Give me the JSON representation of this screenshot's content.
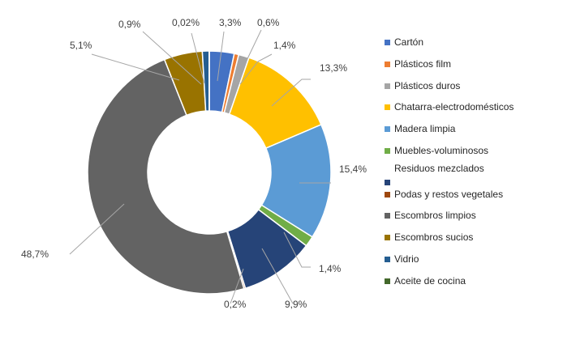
{
  "chart_data": {
    "type": "pie",
    "style": "doughnut",
    "title": "",
    "legend_position": "right",
    "categories": [
      "Cartón",
      "Plásticos film",
      "Plásticos duros",
      "Chatarra-electrodomésticos",
      "Madera limpia",
      "Muebles-voluminosos",
      "Residuos mezclados",
      "Podas y restos vegetales",
      "Escombros limpios",
      "Escombros sucios",
      "Vidrio",
      "Aceite de cocina"
    ],
    "values": [
      3.3,
      0.6,
      1.4,
      13.3,
      15.4,
      1.4,
      9.9,
      0.2,
      48.7,
      5.1,
      0.9,
      0.02
    ],
    "data_labels": [
      "3,3%",
      "0,6%",
      "1,4%",
      "13,3%",
      "15,4%",
      "1,4%",
      "9,9%",
      "0,2%",
      "48,7%",
      "5,1%",
      "0,9%",
      "0,02%"
    ],
    "colors": [
      "#4472C4",
      "#ED7D31",
      "#A5A5A5",
      "#FFC000",
      "#5B9BD5",
      "#70AD47",
      "#264478",
      "#9E480E",
      "#636363",
      "#997300",
      "#255E91",
      "#43682B"
    ]
  }
}
